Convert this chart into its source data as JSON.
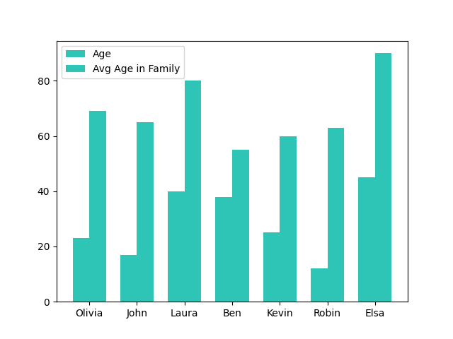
{
  "categories": [
    "Olivia",
    "John",
    "Laura",
    "Ben",
    "Kevin",
    "Robin",
    "Elsa"
  ],
  "age": [
    23,
    17,
    40,
    38,
    25,
    12,
    45
  ],
  "avg_age": [
    69,
    65,
    80,
    55,
    60,
    63,
    90
  ],
  "bar_color": "#2ec4b6",
  "legend_labels": [
    "Age",
    "Avg Age in Family"
  ],
  "bar_width": 0.35,
  "figsize": [
    6.4,
    4.8
  ],
  "dpi": 100
}
